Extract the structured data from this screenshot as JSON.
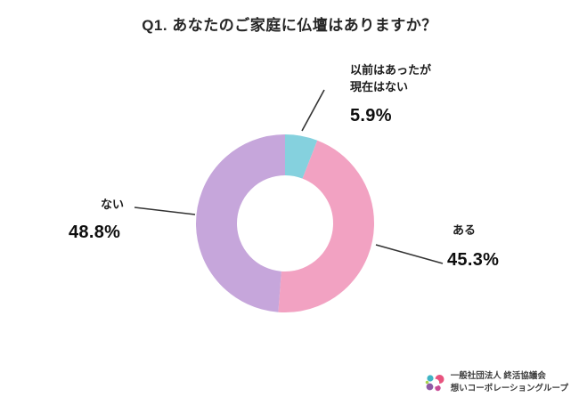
{
  "title": "Q1. あなたのご家庭に仏壇はありますか？",
  "chart_data": {
    "type": "pie",
    "donut": true,
    "title": "Q1. あなたのご家庭に仏壇はありますか？",
    "start_angle_deg": -90,
    "direction": "clockwise",
    "hole_radius_ratio": 0.54,
    "segments": [
      {
        "label": "以前はあったが現在はない",
        "value": 5.9,
        "color": "#85D1DE"
      },
      {
        "label": "ある",
        "value": 45.3,
        "color": "#F2A2C2"
      },
      {
        "label": "ない",
        "value": 48.8,
        "color": "#C6A6DB"
      }
    ]
  },
  "callouts": {
    "prev": {
      "label": "以前はあったが\n現在はない",
      "value": "5.9%"
    },
    "yes": {
      "label": "ある",
      "value": "45.3%"
    },
    "no": {
      "label": "ない",
      "value": "48.8%"
    }
  },
  "footer": {
    "org_line1": "一般社団法人 終活協議会",
    "org_line2": "想いコーポレーショングループ"
  },
  "colors": {
    "line": "#333333",
    "logo_pink": "#E8537E",
    "logo_purple": "#8E5BA6",
    "logo_teal": "#3FB4C4",
    "logo_green": "#A8D34F"
  }
}
